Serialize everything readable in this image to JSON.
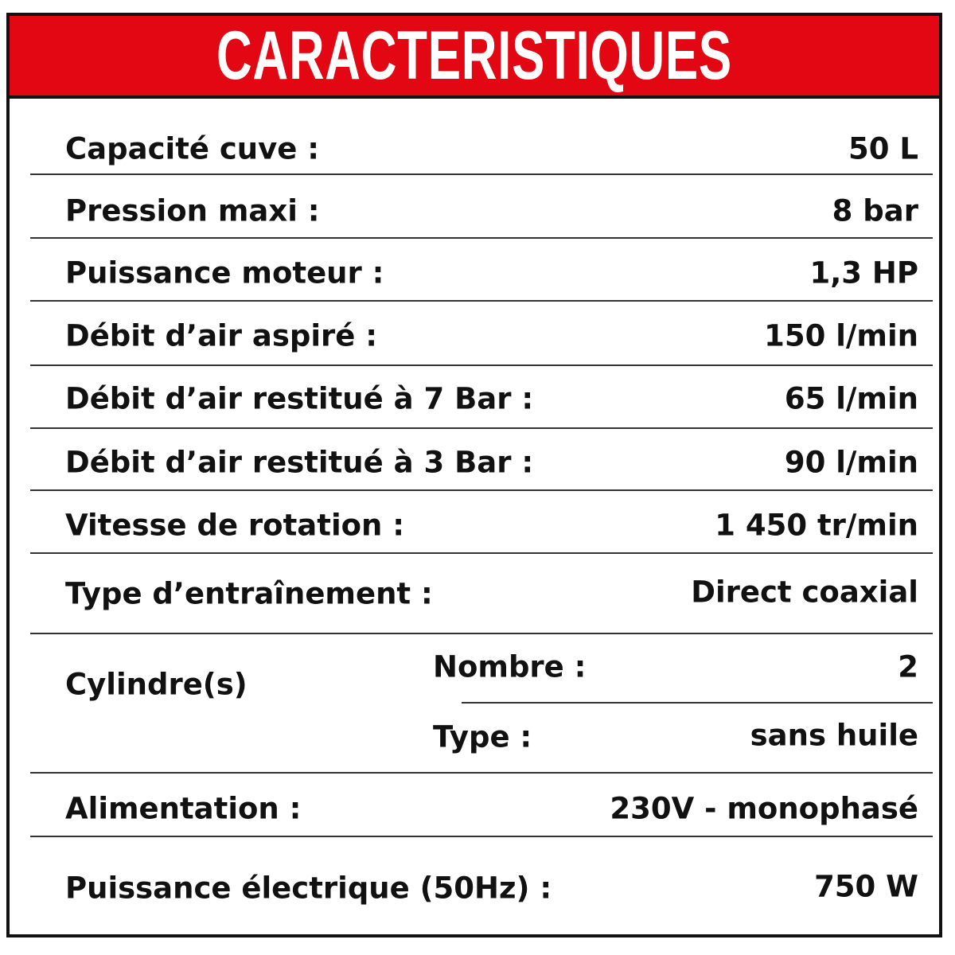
{
  "title": "CARACTERISTIQUES",
  "rows": [
    {
      "label": "Capacité cuve :",
      "value": "50 L"
    },
    {
      "label": "Pression maxi :",
      "value": "8 bar"
    },
    {
      "label": "Puissance moteur :",
      "value": "1,3 HP"
    },
    {
      "label": "Débit d’air aspiré :",
      "value": "150 l/min"
    },
    {
      "label": "Débit d’air restitué à 7 Bar :",
      "value": "65 l/min"
    },
    {
      "label": "Débit d’air restitué à 3 Bar :",
      "value": "90 l/min"
    },
    {
      "label": "Vitesse de rotation :",
      "value": "1 450 tr/min"
    },
    {
      "label": "Type d’entraînement :",
      "value": "Direct coaxial"
    }
  ],
  "cylinders": {
    "label": "Cylindre(s)",
    "count_label": "Nombre :",
    "count_value": "2",
    "type_label": "Type :",
    "type_value": "sans huile"
  },
  "rows2": [
    {
      "label": "Alimentation :",
      "value": "230V - monophasé"
    },
    {
      "label": "Puissance électrique (50Hz) :",
      "value": "750 W"
    }
  ],
  "colors": {
    "header": "#e30613",
    "border": "#111111"
  }
}
